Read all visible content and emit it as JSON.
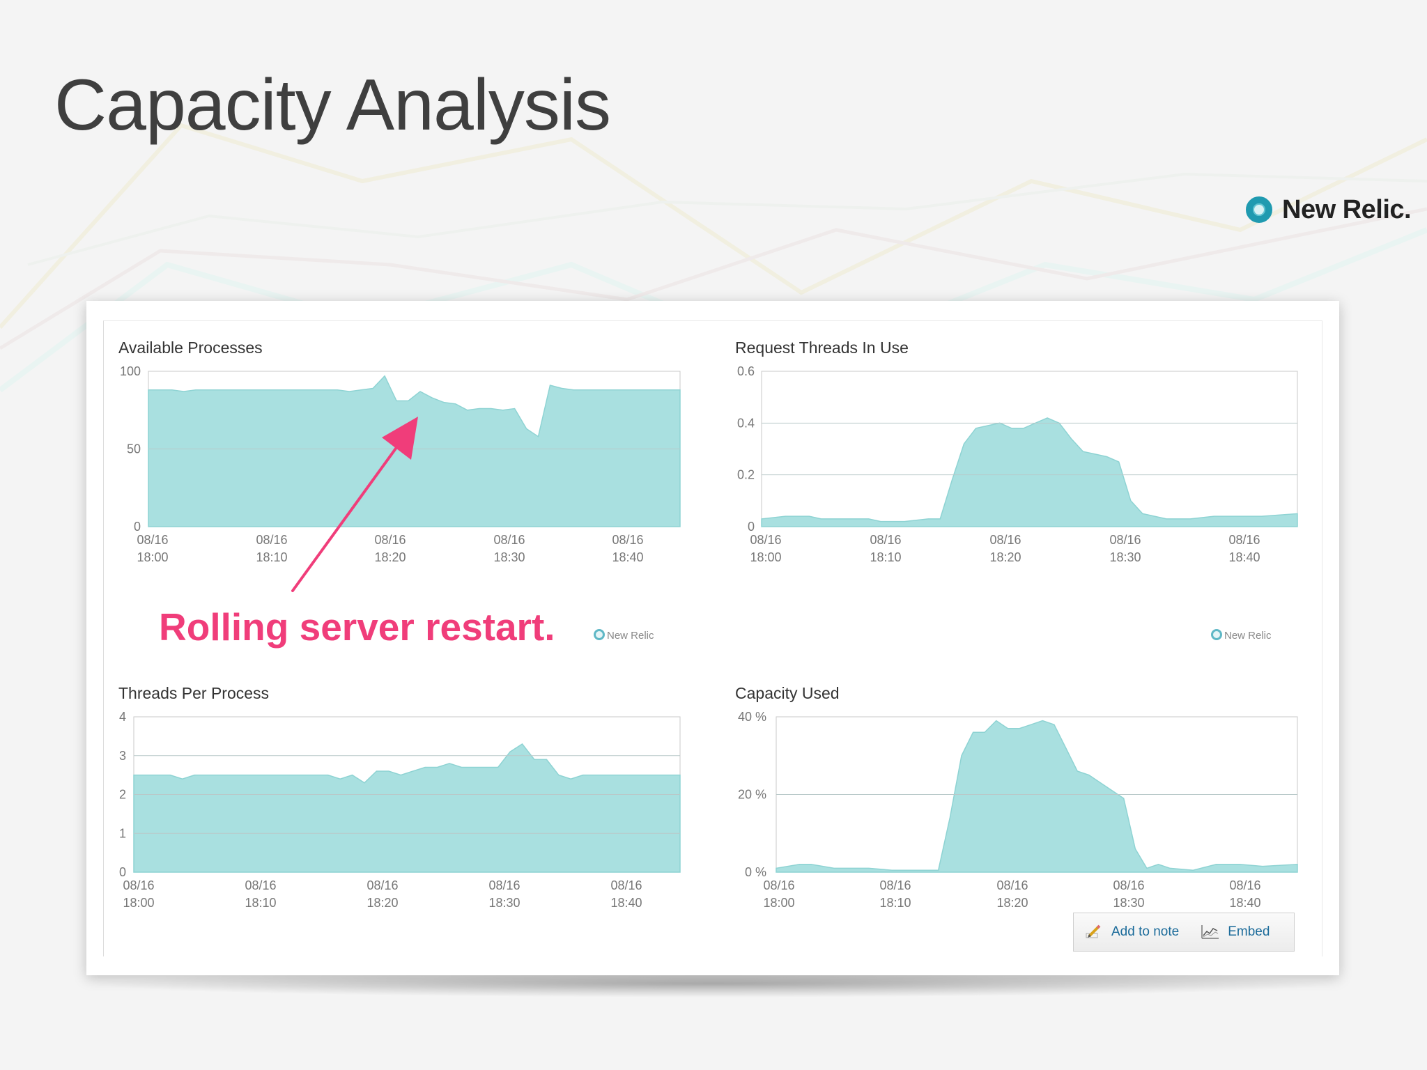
{
  "slide": {
    "title": "Capacity Analysis",
    "brand_name": "New Relic.",
    "annotation": "Rolling server restart."
  },
  "watermark": "New Relic",
  "actions": {
    "add_to_note": "Add to note",
    "embed": "Embed"
  },
  "colors": {
    "area_fill": "#a9e0e0",
    "area_stroke": "#8ed3d3",
    "annotation": "#f03d7a",
    "link": "#1b6b9a"
  },
  "icons": {
    "brand_logo": "new-relic-ring-icon",
    "add_to_note": "pencil-icon",
    "embed": "chart-icon"
  },
  "chart_data": [
    {
      "type": "area",
      "title": "Available Processes",
      "ylim": [
        0,
        100
      ],
      "yticks": [
        0,
        50,
        100
      ],
      "y_tick_labels": [
        "0",
        "50",
        "100"
      ],
      "xlim": [
        0,
        45
      ],
      "x_tick_labels": [
        [
          "08/16",
          "18:00"
        ],
        [
          "08/16",
          "18:10"
        ],
        [
          "08/16",
          "18:20"
        ],
        [
          "08/16",
          "18:30"
        ],
        [
          "08/16",
          "18:40"
        ]
      ],
      "x": [
        0,
        2,
        3,
        4,
        5,
        6,
        8,
        10,
        12,
        14,
        16,
        17,
        18,
        19,
        20,
        21,
        22,
        23,
        24,
        25,
        26,
        27,
        28,
        29,
        30,
        31,
        32,
        33,
        34,
        35,
        36,
        38,
        40,
        42,
        45
      ],
      "values": [
        88,
        88,
        87,
        88,
        88,
        88,
        88,
        88,
        88,
        88,
        88,
        87,
        88,
        89,
        97,
        81,
        81,
        87,
        83,
        80,
        79,
        75,
        76,
        76,
        75,
        76,
        63,
        58,
        91,
        89,
        88,
        88,
        88,
        88,
        88
      ]
    },
    {
      "type": "area",
      "title": "Request Threads In Use",
      "ylim": [
        0,
        0.6
      ],
      "yticks": [
        0,
        0.2,
        0.4,
        0.6
      ],
      "y_tick_labels": [
        "0",
        "0.2",
        "0.4",
        "0.6"
      ],
      "xlim": [
        0,
        45
      ],
      "x_tick_labels": [
        [
          "08/16",
          "18:00"
        ],
        [
          "08/16",
          "18:10"
        ],
        [
          "08/16",
          "18:20"
        ],
        [
          "08/16",
          "18:30"
        ],
        [
          "08/16",
          "18:40"
        ]
      ],
      "x": [
        0,
        2,
        4,
        5,
        7,
        9,
        10,
        12,
        14,
        15,
        16,
        17,
        18,
        19,
        20,
        21,
        22,
        23,
        24,
        25,
        26,
        27,
        28,
        29,
        30,
        31,
        32,
        33,
        34,
        36,
        38,
        40,
        42,
        45
      ],
      "values": [
        0.03,
        0.04,
        0.04,
        0.03,
        0.03,
        0.03,
        0.02,
        0.02,
        0.03,
        0.03,
        0.18,
        0.32,
        0.38,
        0.39,
        0.4,
        0.38,
        0.38,
        0.4,
        0.42,
        0.4,
        0.34,
        0.29,
        0.28,
        0.27,
        0.25,
        0.1,
        0.05,
        0.04,
        0.03,
        0.03,
        0.04,
        0.04,
        0.04,
        0.05
      ]
    },
    {
      "type": "area",
      "title": "Threads Per Process",
      "ylim": [
        0,
        4
      ],
      "yticks": [
        0,
        1,
        2,
        3,
        4
      ],
      "y_tick_labels": [
        "0",
        "1",
        "2",
        "3",
        "4"
      ],
      "xlim": [
        0,
        45
      ],
      "x_tick_labels": [
        [
          "08/16",
          "18:00"
        ],
        [
          "08/16",
          "18:10"
        ],
        [
          "08/16",
          "18:20"
        ],
        [
          "08/16",
          "18:30"
        ],
        [
          "08/16",
          "18:40"
        ]
      ],
      "x": [
        0,
        3,
        4,
        5,
        8,
        12,
        16,
        17,
        18,
        19,
        20,
        21,
        22,
        23,
        24,
        25,
        26,
        27,
        28,
        29,
        30,
        31,
        32,
        33,
        34,
        35,
        36,
        37,
        38,
        40,
        45
      ],
      "values": [
        2.5,
        2.5,
        2.4,
        2.5,
        2.5,
        2.5,
        2.5,
        2.4,
        2.5,
        2.3,
        2.6,
        2.6,
        2.5,
        2.6,
        2.7,
        2.7,
        2.8,
        2.7,
        2.7,
        2.7,
        2.7,
        3.1,
        3.3,
        2.9,
        2.9,
        2.5,
        2.4,
        2.5,
        2.5,
        2.5,
        2.5
      ]
    },
    {
      "type": "area",
      "title": "Capacity Used",
      "ylim": [
        0,
        40
      ],
      "yticks": [
        0,
        20,
        40
      ],
      "y_tick_labels": [
        "0 %",
        "20 %",
        "40 %"
      ],
      "xlim": [
        0,
        45
      ],
      "x_tick_labels": [
        [
          "08/16",
          "18:00"
        ],
        [
          "08/16",
          "18:10"
        ],
        [
          "08/16",
          "18:20"
        ],
        [
          "08/16",
          "18:30"
        ],
        [
          "08/16",
          "18:40"
        ]
      ],
      "x": [
        0,
        2,
        3,
        5,
        8,
        10,
        12,
        14,
        15,
        16,
        17,
        18,
        19,
        20,
        21,
        22,
        23,
        24,
        25,
        26,
        27,
        28,
        29,
        30,
        31,
        32,
        33,
        34,
        36,
        38,
        40,
        42,
        45
      ],
      "values": [
        1,
        2,
        2,
        1,
        1,
        0.5,
        0.5,
        0.5,
        14,
        30,
        36,
        36,
        39,
        37,
        37,
        38,
        39,
        38,
        32,
        26,
        25,
        23,
        21,
        19,
        6,
        1,
        2,
        1,
        0.5,
        2,
        2,
        1.5,
        2
      ]
    }
  ]
}
